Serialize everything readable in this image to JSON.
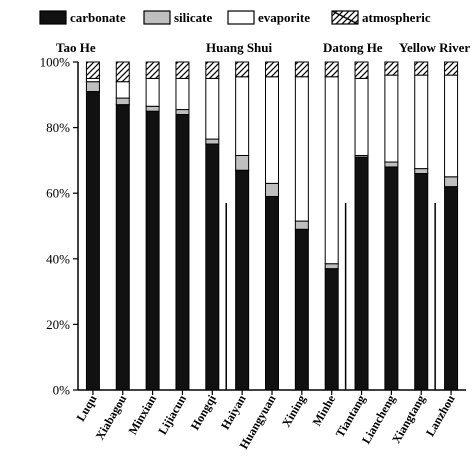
{
  "chart_data": {
    "type": "bar",
    "stacked": true,
    "categories": [
      "Luqu",
      "Xiabagou",
      "Minxian",
      "Lijiacun",
      "Hongqi",
      "Haiyan",
      "Huangyuan",
      "Xining",
      "Minhe",
      "Tiantang",
      "Liancheng",
      "Xiangtang",
      "Lanzhou"
    ],
    "series": [
      {
        "name": "carbonate",
        "color": "#111111",
        "pattern": "solid",
        "values": [
          91,
          87,
          85,
          84,
          75,
          67,
          59,
          49,
          37,
          71,
          68,
          66,
          62
        ]
      },
      {
        "name": "silicate",
        "color": "#bfbfbf",
        "pattern": "solid",
        "values": [
          3,
          2,
          1.5,
          1.5,
          1.5,
          4.5,
          4,
          2.5,
          1.5,
          0.5,
          1.5,
          1.5,
          3
        ]
      },
      {
        "name": "evaporite",
        "color": "#ffffff",
        "pattern": "solid",
        "values": [
          1,
          5,
          8.5,
          9.5,
          18.5,
          24,
          32.5,
          44,
          57,
          23.5,
          26.5,
          28.5,
          31
        ]
      },
      {
        "name": "atmospheric",
        "color": "#ffffff",
        "pattern": "diagonal-hatch",
        "values": [
          5,
          6,
          5,
          5,
          5,
          4.5,
          4.5,
          4.5,
          4.5,
          5,
          4,
          4,
          4
        ]
      }
    ],
    "groups": [
      {
        "label": "Tao He",
        "categories": [
          "Luqu",
          "Xiabagou",
          "Minxian",
          "Lijiacun",
          "Hongqi"
        ]
      },
      {
        "label": "Huang Shui",
        "categories": [
          "Haiyan",
          "Huangyuan",
          "Xining",
          "Minhe"
        ]
      },
      {
        "label": "Datong He",
        "categories": [
          "Tiantang",
          "Liancheng",
          "Xiangtang"
        ]
      },
      {
        "label": "Yellow River",
        "categories": [
          "Lanzhou"
        ]
      }
    ],
    "yticks": [
      "0%",
      "20%",
      "40%",
      "60%",
      "80%",
      "100%"
    ],
    "ylim": [
      0,
      100
    ],
    "legend_position": "top",
    "grid": false
  }
}
